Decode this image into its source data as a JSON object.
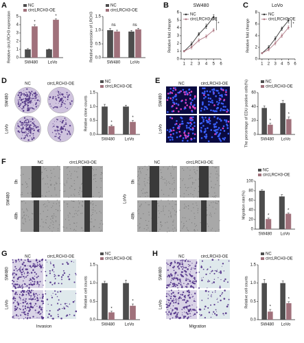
{
  "panels": [
    "A",
    "B",
    "C",
    "D",
    "E",
    "F",
    "G",
    "H"
  ],
  "image_labels": {
    "D": {
      "cols": [
        "NC",
        "circLRCH3-OE"
      ],
      "rows": [
        "SW480",
        "LoVo"
      ]
    },
    "E": {
      "cols": [
        "NC",
        "circLRCH3-OE"
      ],
      "rows": [
        "SW480",
        "LoVo"
      ]
    },
    "F": [
      {
        "cols": [
          "NC",
          "circLRCH3-OE"
        ],
        "rows": [
          "0h",
          "48h"
        ],
        "group": "SW480"
      },
      {
        "cols": [
          "NC",
          "circLRCH3-OE"
        ],
        "rows": [
          "0h",
          "48h"
        ],
        "group": "LoVo"
      }
    ],
    "G": {
      "cols": [
        "NC",
        "circLRCH3-OE"
      ],
      "rows": [
        "SW480",
        "LoVo"
      ],
      "caption": "Invasion"
    },
    "H": {
      "cols": [
        "NC",
        "circLRCH3-OE"
      ],
      "rows": [
        "SW480",
        "LoVo"
      ],
      "caption": "Migration"
    }
  },
  "chart_data": [
    {
      "type": "bar",
      "y_label": "Relative circLRCH3 expression",
      "categories": [
        "SW480",
        "LoVo"
      ],
      "series": [
        {
          "name": "NC",
          "color": "#4d4d4d",
          "values": [
            1,
            1
          ],
          "errors": [
            0.1,
            0.05
          ]
        },
        {
          "name": "circLRCH3-OE",
          "color": "#a0717b",
          "values": [
            3.8,
            4.6
          ],
          "errors": [
            0.2,
            0.1
          ]
        }
      ],
      "annotations": [
        "*",
        "*"
      ],
      "ylim": [
        0,
        5
      ],
      "yticks": [
        0,
        1,
        2,
        3,
        4,
        5
      ]
    },
    {
      "type": "bar",
      "y_label": "Relative expression of LRCH3",
      "categories": [
        "SW480",
        "LoVo"
      ],
      "series": [
        {
          "name": "NC",
          "color": "#4d4d4d",
          "values": [
            1,
            0.95
          ],
          "errors": [
            0.06,
            0.04
          ]
        },
        {
          "name": "circLRCH3-OE",
          "color": "#a0717b",
          "values": [
            0.95,
            1.03
          ],
          "errors": [
            0.05,
            0.04
          ]
        }
      ],
      "annotations": [
        "ns",
        "ns"
      ],
      "ylim": [
        0,
        1.5
      ],
      "yticks": [
        {
          "value": 0,
          "label": "0.0"
        },
        0.5,
        {
          "value": 1,
          "label": "1.0"
        },
        1.5
      ]
    },
    {
      "type": "line",
      "title": "SW480",
      "y_label": "Relative fold change",
      "x": [
        1,
        2,
        3,
        4,
        5
      ],
      "series": [
        {
          "name": "NC",
          "color": "#333333",
          "values": [
            1,
            1.9,
            3.2,
            4.2,
            5.4
          ],
          "errors": [
            0.1,
            0.3,
            0.2,
            0.3,
            0.3
          ]
        },
        {
          "name": "circLRCH3-OE",
          "color": "#b07a85",
          "values": [
            1,
            1.5,
            2.4,
            2.9,
            3.7
          ],
          "errors": [
            0.1,
            0.2,
            0.2,
            0.2,
            0.2
          ]
        }
      ],
      "annotation": "*",
      "xlim": [
        0.6,
        6
      ],
      "xticks": [
        1,
        2,
        3,
        4,
        5,
        6
      ],
      "ylim": [
        0,
        6
      ],
      "yticks": [
        0,
        1,
        2,
        3,
        4,
        5,
        6
      ]
    },
    {
      "type": "line",
      "title": "LoVo",
      "y_label": "Relative fold change",
      "x": [
        1,
        2,
        3,
        4,
        5
      ],
      "series": [
        {
          "name": "NC",
          "color": "#333333",
          "values": [
            1,
            2,
            3.5,
            5.2,
            6.6
          ],
          "errors": [
            0.1,
            0.3,
            0.3,
            0.3,
            0.4
          ]
        },
        {
          "name": "circLRCH3-OE",
          "color": "#b07a85",
          "values": [
            1,
            1.6,
            2.7,
            4,
            5.4
          ],
          "errors": [
            0.1,
            0.2,
            0.3,
            0.3,
            0.3
          ]
        }
      ],
      "annotation": "*",
      "xlim": [
        0.6,
        6
      ],
      "xticks": [
        1,
        2,
        3,
        4,
        5,
        6
      ],
      "ylim": [
        0,
        8
      ],
      "yticks": [
        0,
        2,
        4,
        6,
        8
      ]
    },
    {
      "type": "bar",
      "y_label": "Relative clone counts",
      "categories": [
        "SW480",
        "LoVo"
      ],
      "series": [
        {
          "name": "NC",
          "color": "#4d4d4d",
          "values": [
            1,
            1
          ],
          "errors": [
            0.08,
            0.05
          ]
        },
        {
          "name": "circLRCH3-OE",
          "color": "#a0717b",
          "values": [
            0.3,
            0.45
          ],
          "errors": [
            0.04,
            0.05
          ]
        }
      ],
      "annotations": [
        "*",
        "*"
      ],
      "ylim": [
        0,
        1.5
      ],
      "yticks": [
        {
          "value": 0,
          "label": "0.0"
        },
        0.5,
        {
          "value": 1,
          "label": "1.0"
        },
        1.5
      ]
    },
    {
      "type": "bar",
      "y_label": "The percentage of EDU positive cells(%)",
      "categories": [
        "SW480",
        "LoVo"
      ],
      "series": [
        {
          "name": "NC",
          "color": "#4d4d4d",
          "values": [
            38,
            45
          ],
          "errors": [
            3,
            4
          ]
        },
        {
          "name": "circLRCH3-OE",
          "color": "#a0717b",
          "values": [
            14,
            22
          ],
          "errors": [
            2,
            3
          ]
        }
      ],
      "annotations": [
        "*",
        "*"
      ],
      "ylim": [
        0,
        60
      ],
      "yticks": [
        0,
        20,
        40,
        60
      ]
    },
    {
      "type": "bar",
      "y_label": "Migration rate(%)",
      "categories": [
        "SW480",
        "LoVo"
      ],
      "series": [
        {
          "name": "NC",
          "color": "#4d4d4d",
          "values": [
            80,
            68
          ],
          "errors": [
            2,
            4
          ]
        },
        {
          "name": "circLRCH3-OE",
          "color": "#a0717b",
          "values": [
            21,
            32
          ],
          "errors": [
            2,
            2
          ]
        }
      ],
      "annotations": [
        "*",
        "*"
      ],
      "ylim": [
        0,
        100
      ],
      "yticks": [
        0,
        20,
        40,
        60,
        80,
        100
      ]
    },
    {
      "type": "bar",
      "y_label": "Relative cell counts",
      "categories": [
        "SW480",
        "LoVo"
      ],
      "series": [
        {
          "name": "NC",
          "color": "#4d4d4d",
          "values": [
            1,
            1
          ],
          "errors": [
            0.05,
            0.08
          ]
        },
        {
          "name": "circLRCH3-OE",
          "color": "#a0717b",
          "values": [
            0.2,
            0.38
          ],
          "errors": [
            0.03,
            0.05
          ]
        }
      ],
      "annotations": [
        "*",
        "*"
      ],
      "ylim": [
        0,
        1.5
      ],
      "yticks": [
        {
          "value": 0,
          "label": "0.0"
        },
        0.5,
        {
          "value": 1,
          "label": "1.0"
        },
        1.5
      ]
    },
    {
      "type": "bar",
      "y_label": "Relative cell counts",
      "categories": [
        "SW480",
        "LoVo"
      ],
      "series": [
        {
          "name": "NC",
          "color": "#4d4d4d",
          "values": [
            1,
            1
          ],
          "errors": [
            0.1,
            0.06
          ]
        },
        {
          "name": "circLRCH3-OE",
          "color": "#a0717b",
          "values": [
            0.22,
            0.45
          ],
          "errors": [
            0.06,
            0.04
          ]
        }
      ],
      "annotations": [
        "*",
        "*"
      ],
      "ylim": [
        0,
        1.5
      ],
      "yticks": [
        {
          "value": 0,
          "label": "0.0"
        },
        0.5,
        {
          "value": 1,
          "label": "1.0"
        },
        1.5
      ]
    }
  ]
}
